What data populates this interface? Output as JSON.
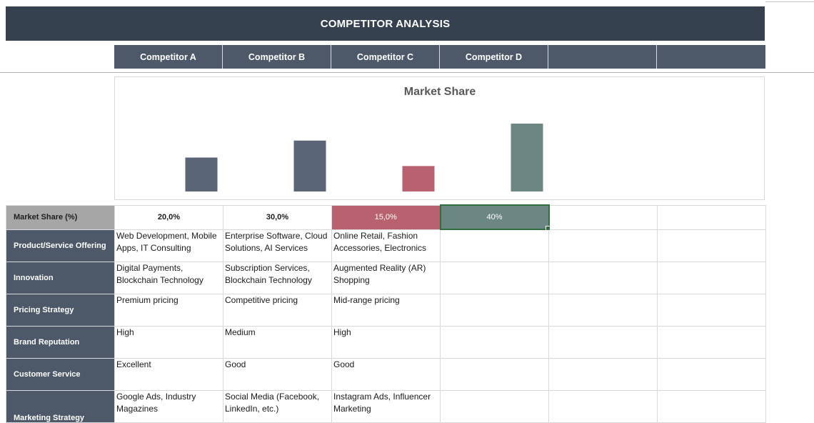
{
  "title": "COMPETITOR ANALYSIS",
  "competitors": [
    "Competitor A",
    "Competitor B",
    "Competitor C",
    "Competitor D",
    "",
    ""
  ],
  "chart_data": {
    "type": "bar",
    "title": "Market Share",
    "categories": [
      "Competitor A",
      "Competitor B",
      "Competitor C",
      "Competitor D"
    ],
    "values": [
      20,
      30,
      15,
      40
    ],
    "colors": [
      "#5a6678",
      "#5a6678",
      "#b8626f",
      "#6b8683"
    ],
    "ylim": [
      0,
      40
    ],
    "grid": false,
    "xlabel": "",
    "ylabel": ""
  },
  "rows": [
    {
      "label": "Market Share (%)",
      "values": [
        "20,0%",
        "30,0%",
        "15,0%",
        "40%",
        "",
        ""
      ]
    },
    {
      "label": "Product/Service Offering",
      "values": [
        "Web Development, Mobile Apps, IT Consulting",
        "Enterprise Software, Cloud Solutions, AI Services",
        "Online Retail, Fashion Accessories, Electronics",
        "",
        "",
        ""
      ]
    },
    {
      "label": "Innovation",
      "values": [
        "Digital Payments, Blockchain Technology",
        "Subscription Services, Blockchain Technology",
        "Augmented Reality (AR) Shopping",
        "",
        "",
        ""
      ]
    },
    {
      "label": "Pricing Strategy",
      "values": [
        "Premium pricing",
        "Competitive pricing",
        "Mid-range pricing",
        "",
        "",
        ""
      ]
    },
    {
      "label": "Brand Reputation",
      "values": [
        "High",
        "Medium",
        "High",
        "",
        "",
        ""
      ]
    },
    {
      "label": "Customer Service",
      "values": [
        "Excellent",
        "Good",
        "Good",
        "",
        "",
        ""
      ]
    },
    {
      "label": "Marketing Strategy",
      "values": [
        "Google Ads, Industry Magazines",
        "Social Media (Facebook, LinkedIn, etc.)",
        "Instagram Ads, Influencer Marketing",
        "",
        "",
        ""
      ]
    }
  ]
}
